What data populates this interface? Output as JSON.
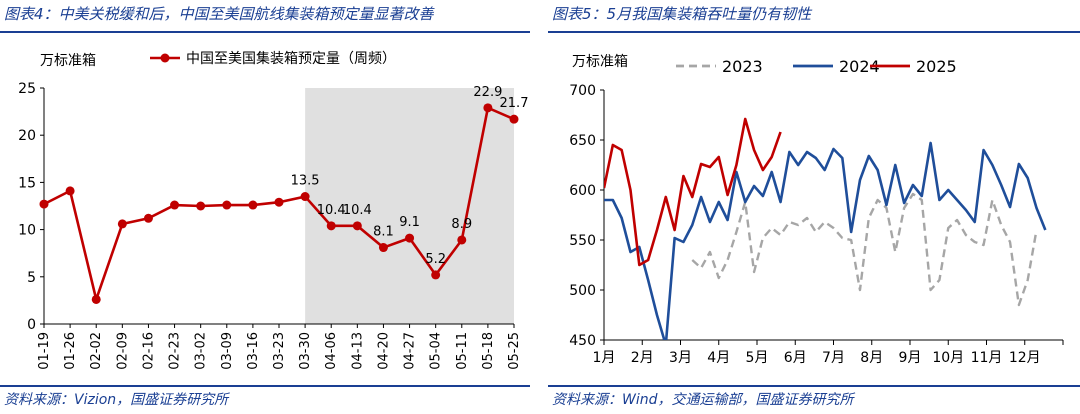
{
  "left": {
    "title": "图表4：中美关税缓和后，中国至美国航线集装箱预定量显著改善",
    "source": "资料来源：Vizion，国盛证券研究所",
    "chart_data": {
      "type": "line",
      "ylabel": "万标准箱",
      "ylim": [
        0,
        25
      ],
      "yticks": [
        0,
        5,
        10,
        15,
        20,
        25
      ],
      "categories": [
        "01-19",
        "01-26",
        "02-02",
        "02-09",
        "02-16",
        "02-23",
        "03-02",
        "03-09",
        "03-16",
        "03-23",
        "03-30",
        "04-06",
        "04-13",
        "04-20",
        "04-27",
        "05-04",
        "05-11",
        "05-18",
        "05-25"
      ],
      "series": [
        {
          "name": "中国至美国集装箱预定量（周频）",
          "color": "#c00000",
          "values": [
            12.7,
            14.1,
            2.6,
            10.6,
            11.2,
            12.6,
            12.5,
            12.6,
            12.6,
            12.9,
            13.5,
            10.4,
            10.4,
            8.1,
            9.1,
            5.2,
            8.9,
            22.9,
            21.7
          ]
        }
      ],
      "data_labels": [
        {
          "index": 10,
          "text": "13.5"
        },
        {
          "index": 11,
          "text": "10.4"
        },
        {
          "index": 12,
          "text": "10.4"
        },
        {
          "index": 13,
          "text": "8.1"
        },
        {
          "index": 14,
          "text": "9.1"
        },
        {
          "index": 15,
          "text": "5.2"
        },
        {
          "index": 16,
          "text": "8.9"
        },
        {
          "index": 17,
          "text": "22.9"
        },
        {
          "index": 18,
          "text": "21.7"
        }
      ],
      "shaded_range": {
        "from": "03-30",
        "to": "05-25",
        "color": "#e0e0e0"
      },
      "legend_position": "top"
    }
  },
  "right": {
    "title": "图表5：5月我国集装箱吞吐量仍有韧性",
    "source": "资料来源：Wind，交通运输部，国盛证券研究所",
    "chart_data": {
      "type": "line",
      "ylabel": "万标准箱",
      "ylim": [
        450,
        700
      ],
      "yticks": [
        450,
        500,
        550,
        600,
        650,
        700
      ],
      "xticks": [
        "1月",
        "2月",
        "3月",
        "4月",
        "5月",
        "6月",
        "7月",
        "8月",
        "9月",
        "10月",
        "11月",
        "12月"
      ],
      "x_unit": "week",
      "series": [
        {
          "name": "2023",
          "color": "#a6a6a6",
          "dashed": true,
          "start_week": 10,
          "values": [
            530,
            522,
            538,
            512,
            530,
            558,
            588,
            518,
            552,
            562,
            555,
            568,
            565,
            572,
            558,
            568,
            562,
            552,
            550,
            500,
            572,
            590,
            582,
            538,
            582,
            596,
            590,
            500,
            510,
            562,
            570,
            555,
            548,
            545,
            590,
            565,
            548,
            485,
            510,
            560
          ]
        },
        {
          "name": "2024",
          "color": "#1f4e9a",
          "dashed": false,
          "start_week": 0,
          "values": [
            590,
            590,
            572,
            538,
            543,
            510,
            475,
            445,
            552,
            548,
            565,
            593,
            568,
            588,
            570,
            618,
            588,
            604,
            594,
            618,
            588,
            638,
            625,
            638,
            632,
            620,
            641,
            632,
            558,
            610,
            634,
            620,
            585,
            625,
            587,
            605,
            594,
            647,
            590,
            600,
            590,
            580,
            568,
            640,
            625,
            605,
            583,
            626,
            612,
            582,
            560
          ]
        },
        {
          "name": "2025",
          "color": "#c00000",
          "dashed": false,
          "start_week": 0,
          "values": [
            602,
            645,
            640,
            600,
            525,
            530,
            560,
            593,
            560,
            614,
            593,
            626,
            623,
            633,
            595,
            625,
            671,
            640,
            620,
            633,
            658
          ]
        }
      ],
      "legend_position": "top"
    }
  }
}
